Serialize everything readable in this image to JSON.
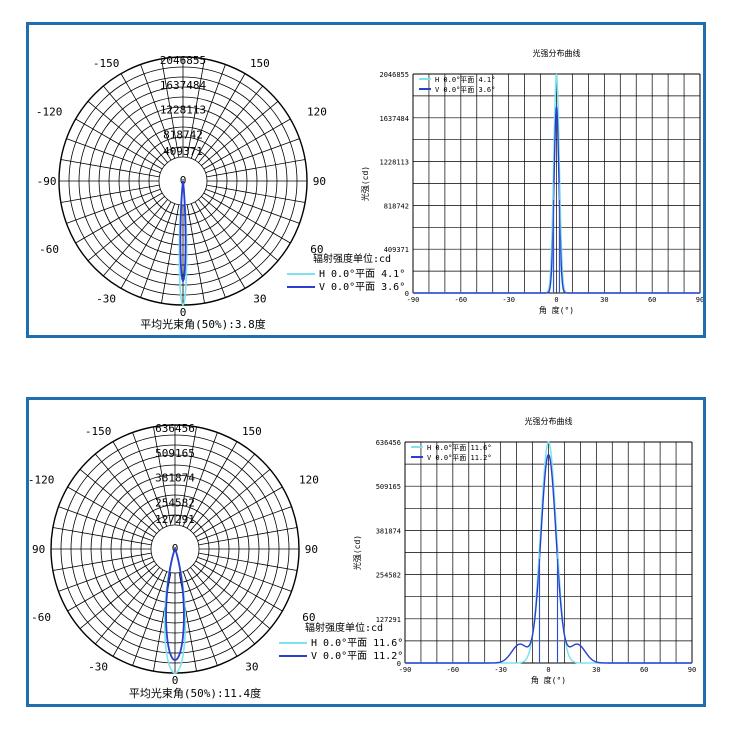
{
  "colors": {
    "frame": "#1f6fb0",
    "h_curve": "#7fe3ef",
    "v_curve": "#2a3fd0",
    "grid": "#000000"
  },
  "charts": [
    {
      "polar": {
        "rings": [
          "2046855",
          "1637484",
          "1228113",
          "818742",
          "409371"
        ],
        "center_label": "0",
        "angle_labels": {
          "top_left": "-150",
          "top_right": "150",
          "upper_left": "-120",
          "upper_right": "120",
          "left": "-90",
          "right": "90",
          "lower_left": "-60",
          "lower_right": "60",
          "bottom_left": "-30",
          "bottom_right": "30",
          "bottom": "0"
        },
        "unit_label": "辐射强度单位:cd",
        "legend": [
          {
            "name": "H 0.0°平面 4.1°"
          },
          {
            "name": "V 0.0°平面 3.6°"
          }
        ],
        "beam_angle": "平均光束角(50%):3.8度"
      },
      "chart_data": {
        "type": "line",
        "title": "光强分布曲线",
        "xlabel": "角 度(°)",
        "ylabel": "光强(cd)",
        "xlim": [
          -90,
          90
        ],
        "ylim": [
          0,
          2046855
        ],
        "x_ticks": [
          "-90",
          "-60",
          "-30",
          "0",
          "30",
          "60",
          "90"
        ],
        "y_ticks": [
          "409371",
          "818742",
          "1228113",
          "1637484",
          "2046855"
        ],
        "legend": [
          "H 0.0°平面 4.1°",
          "V 0.0°平面 3.6°"
        ],
        "series": [
          {
            "name": "H 0.0°平面 4.1°",
            "peak": 2046855,
            "fwhm": 4.1
          },
          {
            "name": "V 0.0°平面 3.6°",
            "peak": 1740000,
            "fwhm": 3.6
          }
        ]
      }
    },
    {
      "polar": {
        "rings": [
          "636456",
          "509165",
          "381874",
          "254582",
          "127291"
        ],
        "center_label": "0",
        "angle_labels": {
          "top_left": "-150",
          "top_right": "150",
          "upper_left": "-120",
          "upper_right": "120",
          "left": "90",
          "right": "90",
          "lower_left": "-60",
          "lower_right": "60",
          "bottom_left": "-30",
          "bottom_right": "30",
          "bottom": "0"
        },
        "unit_label": "辐射强度单位:cd",
        "legend": [
          {
            "name": "H 0.0°平面 11.6°"
          },
          {
            "name": "V 0.0°平面 11.2°"
          }
        ],
        "beam_angle": "平均光束角(50%):11.4度"
      },
      "chart_data": {
        "type": "line",
        "title": "光强分布曲线",
        "xlabel": "角 度(°)",
        "ylabel": "光强(cd)",
        "xlim": [
          -90,
          90
        ],
        "ylim": [
          0,
          636456
        ],
        "x_ticks": [
          "-90",
          "-60",
          "-30",
          "0",
          "30",
          "60",
          "90"
        ],
        "y_ticks": [
          "127291",
          "254582",
          "381874",
          "509165",
          "636456"
        ],
        "legend": [
          "H 0.0°平面 11.6°",
          "V 0.0°平面 11.2°"
        ],
        "series": [
          {
            "name": "H 0.0°平面 11.6°",
            "peak": 636456,
            "fwhm": 11.6
          },
          {
            "name": "V 0.0°平面 11.2°",
            "peak": 600000,
            "fwhm": 11.2
          }
        ]
      }
    }
  ]
}
